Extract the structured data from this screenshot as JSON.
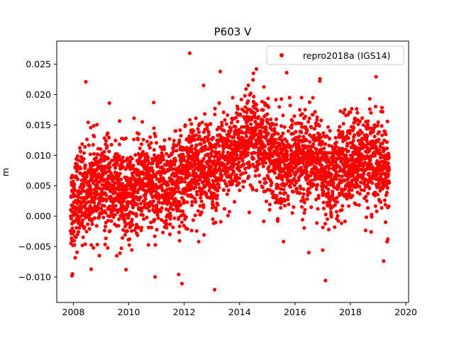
{
  "chart_data": {
    "type": "scatter",
    "title": "P603 V",
    "xlabel": "",
    "ylabel": "m",
    "xlim": [
      2007.4,
      2020.1
    ],
    "ylim": [
      -0.0142,
      0.0288
    ],
    "xticks": [
      2008,
      2010,
      2012,
      2014,
      2016,
      2018,
      2020
    ],
    "xtick_labels": [
      "2008",
      "2010",
      "2012",
      "2014",
      "2016",
      "2018",
      "2020"
    ],
    "yticks": [
      -0.01,
      -0.005,
      0.0,
      0.005,
      0.01,
      0.015,
      0.02,
      0.025
    ],
    "ytick_labels": [
      "−0.010",
      "−0.005",
      "0.000",
      "0.005",
      "0.010",
      "0.015",
      "0.020",
      "0.025"
    ],
    "grid": false,
    "legend_position": "top-right",
    "series": [
      {
        "name": "repro2018a (IGS14)",
        "color": "#ff0000",
        "marker": "circle",
        "x_range": [
          2007.9,
          2019.4
        ],
        "trend": [
          {
            "x": 2007.9,
            "y": 0.0015
          },
          {
            "x": 2008.5,
            "y": 0.0045
          },
          {
            "x": 2009.5,
            "y": 0.0045
          },
          {
            "x": 2010.0,
            "y": 0.003
          },
          {
            "x": 2010.6,
            "y": 0.0065
          },
          {
            "x": 2011.3,
            "y": 0.004
          },
          {
            "x": 2012.0,
            "y": 0.0065
          },
          {
            "x": 2012.5,
            "y": 0.0085
          },
          {
            "x": 2013.0,
            "y": 0.0075
          },
          {
            "x": 2013.5,
            "y": 0.009
          },
          {
            "x": 2014.0,
            "y": 0.011
          },
          {
            "x": 2014.5,
            "y": 0.0125
          },
          {
            "x": 2015.0,
            "y": 0.0115
          },
          {
            "x": 2015.5,
            "y": 0.0085
          },
          {
            "x": 2016.0,
            "y": 0.0095
          },
          {
            "x": 2016.8,
            "y": 0.0095
          },
          {
            "x": 2017.2,
            "y": 0.006
          },
          {
            "x": 2017.8,
            "y": 0.0085
          },
          {
            "x": 2018.5,
            "y": 0.0095
          },
          {
            "x": 2019.4,
            "y": 0.0075
          }
        ],
        "outliers": [
          {
            "x": 2007.95,
            "y": -0.0098
          },
          {
            "x": 2007.97,
            "y": -0.0095
          },
          {
            "x": 2008.45,
            "y": 0.0221
          },
          {
            "x": 2009.3,
            "y": 0.0186
          },
          {
            "x": 2009.9,
            "y": -0.0088
          },
          {
            "x": 2010.9,
            "y": 0.0187
          },
          {
            "x": 2010.95,
            "y": -0.01
          },
          {
            "x": 2011.8,
            "y": -0.0096
          },
          {
            "x": 2011.92,
            "y": -0.0111
          },
          {
            "x": 2012.2,
            "y": 0.0268
          },
          {
            "x": 2012.7,
            "y": 0.0215
          },
          {
            "x": 2013.1,
            "y": -0.0121
          },
          {
            "x": 2013.3,
            "y": 0.0238
          },
          {
            "x": 2014.5,
            "y": 0.0235
          },
          {
            "x": 2015.7,
            "y": 0.0236
          },
          {
            "x": 2016.9,
            "y": 0.0226
          },
          {
            "x": 2017.1,
            "y": -0.0106
          },
          {
            "x": 2018.7,
            "y": 0.0193
          },
          {
            "x": 2019.2,
            "y": -0.0074
          },
          {
            "x": 2019.35,
            "y": -0.0038
          },
          {
            "x": 2016.5,
            "y": -0.006
          },
          {
            "x": 2017.0,
            "y": -0.0056
          }
        ]
      }
    ]
  }
}
